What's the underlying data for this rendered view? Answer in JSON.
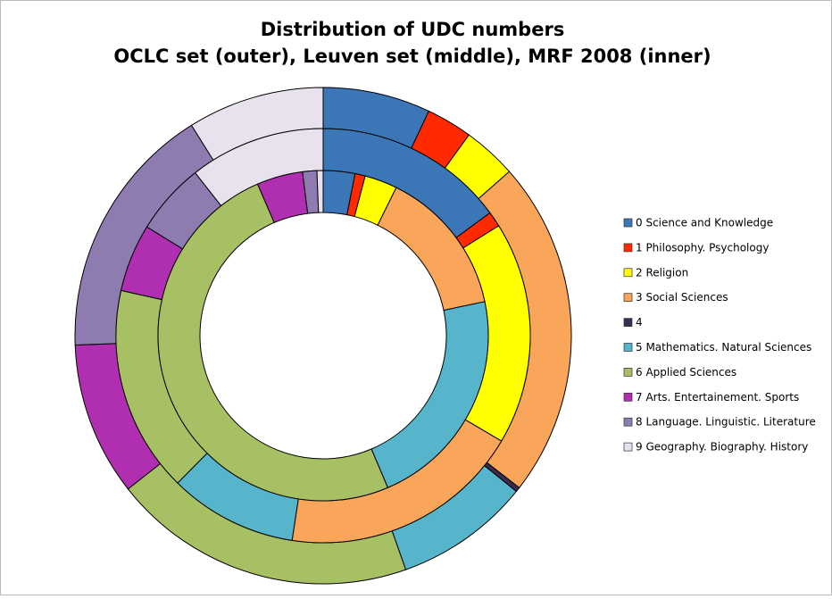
{
  "chart_data": {
    "type": "donut",
    "title": [
      "Distribution of UDC numbers",
      "OCLC set (outer), Leuven set (middle), MRF 2008 (inner)"
    ],
    "categories": [
      "0 Science and Knowledge",
      "1 Philosophy. Psychology",
      "2 Religion",
      "3 Social Sciences",
      "4",
      "5 Mathematics. Natural Sciences",
      "6 Applied Sciences",
      "7 Arts. Entertainement. Sports",
      "8 Language. Linguistic. Literature",
      "9 Geography. Biography. History"
    ],
    "colors": [
      "#3b77b6",
      "#ff2a00",
      "#ffff00",
      "#f9a65a",
      "#3b2d4f",
      "#56b5cb",
      "#a8c064",
      "#b02eb0",
      "#8e7cb1",
      "#e8e2ef"
    ],
    "rings": [
      {
        "values": [
          7,
          3,
          3.5,
          22,
          0.3,
          8.8,
          19.8,
          10,
          16.7,
          8.9
        ]
      },
      {
        "values": [
          14.9,
          1.2,
          17.4,
          18.9,
          0,
          10,
          16.1,
          5.3,
          5.6,
          10.6
        ]
      },
      {
        "values": [
          3.1,
          1,
          3.2,
          14.4,
          0,
          21.9,
          49.9,
          4.5,
          1.4,
          0.6
        ]
      }
    ],
    "legend": "right"
  }
}
